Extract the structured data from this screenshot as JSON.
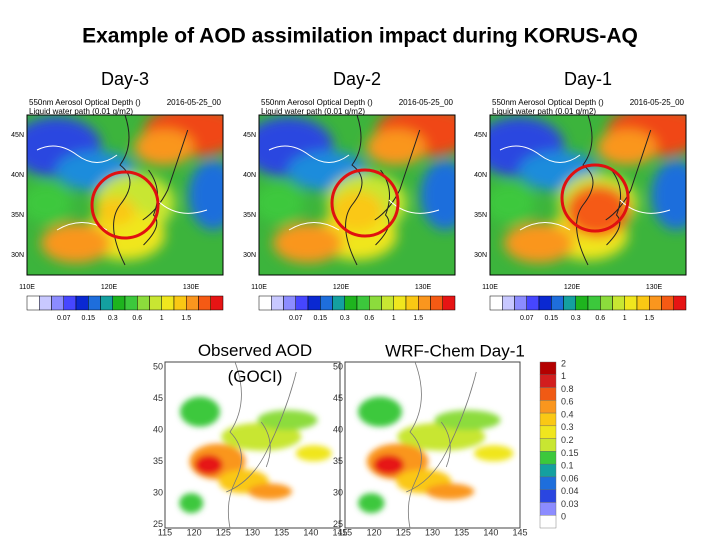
{
  "title": "Example of AOD assimilation impact during KORUS-AQ",
  "top_panels": {
    "labels": [
      "Day-3",
      "Day-2",
      "Day-1"
    ],
    "header_title": "550nm Aerosol Optical Depth ()",
    "header_date": "2016-05-25_00",
    "header_sub": "Liquid water path (0.01 g/m2)",
    "lat_labels": [
      "45N",
      "40N",
      "35N",
      "30N"
    ],
    "lon_labels": [
      "110E",
      "120E",
      "130E"
    ],
    "colorbar_labels": [
      "0.07",
      "0.15",
      "0.3",
      "0.6",
      "1",
      "1.5"
    ]
  },
  "bottom_panels": {
    "labels": [
      "Observed AOD (GOCI)",
      "WRF-Chem Day-1"
    ],
    "lat_labels": [
      "50",
      "45",
      "40",
      "35",
      "30",
      "25"
    ],
    "lon_labels": [
      "115",
      "120",
      "125",
      "130",
      "135",
      "140",
      "145"
    ],
    "colorbar_labels": [
      "2",
      "1",
      "0.8",
      "0.6",
      "0.4",
      "0.3",
      "0.2",
      "0.15",
      "0.1",
      "0.06",
      "0.04",
      "0.03",
      "0"
    ]
  }
}
